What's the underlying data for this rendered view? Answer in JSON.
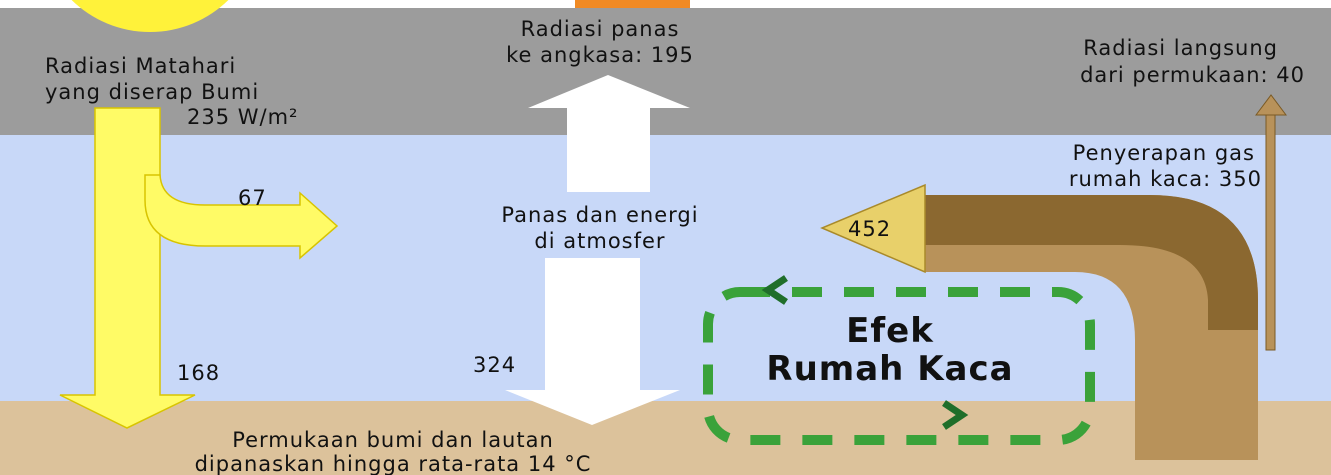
{
  "solar_absorbed": {
    "lines": [
      "Radiasi Matahari",
      "yang diserap Bumi"
    ],
    "amount": "235 W/m²"
  },
  "atmosphere_absorbed": "67",
  "surface_absorbed": "168",
  "space_radiation": [
    "Radiasi panas",
    "ke angkasa: 195"
  ],
  "direct_radiation": [
    "Radiasi langsung",
    "dari permukaan: 40"
  ],
  "ghg_absorption": [
    "Penyerapan gas",
    "rumah kaca: 350"
  ],
  "back_radiation": "452",
  "atmosphere": [
    "Panas dan energi",
    "di atmosfer"
  ],
  "downward": "324",
  "effect": [
    "Efek",
    "Rumah Kaca"
  ],
  "surface": [
    "Permukaan bumi dan lautan",
    "dipanaskan hingga rata-rata 14 °C"
  ]
}
